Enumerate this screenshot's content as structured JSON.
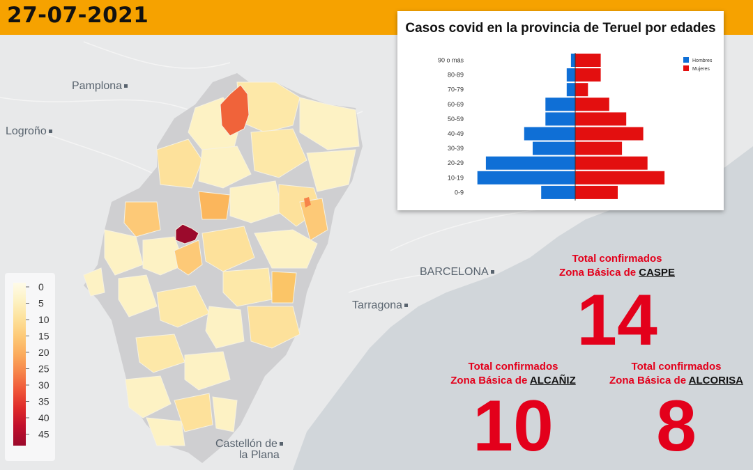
{
  "header": {
    "date": "27-07-2021",
    "accent_color": "#f6a200"
  },
  "map": {
    "cities": [
      {
        "id": "pamplona",
        "name": "Pamplona"
      },
      {
        "id": "logrono",
        "name": "Logroño"
      },
      {
        "id": "barcelona",
        "name": "BARCELONA"
      },
      {
        "id": "tarragona",
        "name": "Tarragona"
      },
      {
        "id": "castellon1",
        "name": "Castellón de"
      },
      {
        "id": "castellon2",
        "name": "la Plana"
      }
    ],
    "legend": {
      "ticks": [
        "0",
        "5",
        "10",
        "15",
        "20",
        "25",
        "30",
        "35",
        "40",
        "45"
      ],
      "colors": [
        "#fefbe9",
        "#fdf2c4",
        "#fde19b",
        "#fdc977",
        "#fbab5c",
        "#f6844a",
        "#ef5538",
        "#de2a2a",
        "#c10f2c",
        "#9b0a2c"
      ]
    }
  },
  "chart": {
    "title": "Casos covid en la provincia de Teruel por edades",
    "legend": [
      {
        "label": "Hombres",
        "color": "#0f6fd6"
      },
      {
        "label": "Mujeres",
        "color": "#e30f0f"
      }
    ]
  },
  "chart_data": {
    "type": "bar",
    "orientation": "horizontal-pyramid",
    "title": "Casos covid en la provincia de Teruel por edades",
    "categories": [
      "90 o más",
      "80-89",
      "70-79",
      "60-69",
      "50-59",
      "40-49",
      "30-39",
      "20-29",
      "10-19",
      "0-9"
    ],
    "series": [
      {
        "name": "Hombres",
        "values": [
          1,
          2,
          2,
          7,
          7,
          12,
          10,
          21,
          23,
          8
        ]
      },
      {
        "name": "Mujeres",
        "values": [
          6,
          6,
          3,
          8,
          12,
          16,
          11,
          17,
          21,
          10
        ]
      }
    ],
    "legend_position": "top-right",
    "grid": false
  },
  "totals": [
    {
      "id": "caspe",
      "label": "Total confirmados",
      "zone_prefix": "Zona Básica de ",
      "zone": "CASPE",
      "value": "14"
    },
    {
      "id": "alcaniz",
      "label": "Total confirmados",
      "zone_prefix": "Zona Básica de ",
      "zone": "ALCAÑIZ",
      "value": "10"
    },
    {
      "id": "alcorisa",
      "label": "Total confirmados",
      "zone_prefix": "Zona Básica de ",
      "zone": "ALCORISA",
      "value": "8"
    }
  ]
}
